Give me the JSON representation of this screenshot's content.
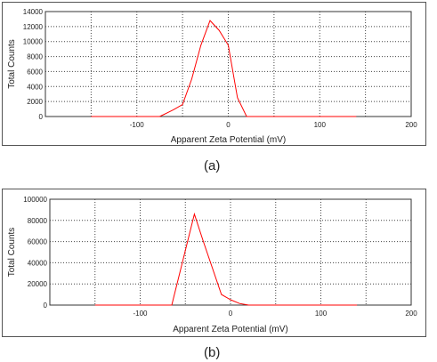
{
  "chart_data": [
    {
      "type": "line",
      "panel_label": "(a)",
      "xlabel": "Apparent Zeta Potential (mV)",
      "ylabel": "Total Counts",
      "xlim": [
        -200,
        200
      ],
      "ylim": [
        0,
        14000
      ],
      "xticks": [
        -100,
        0,
        100,
        200
      ],
      "yticks": [
        0,
        2000,
        4000,
        6000,
        8000,
        10000,
        12000,
        14000
      ],
      "grid": true,
      "line_color": "#ff0000",
      "series": [
        {
          "x": [
            -150,
            -75,
            -70,
            -60,
            -50,
            -40,
            -30,
            -20,
            -10,
            0,
            10,
            20,
            140
          ],
          "y": [
            0,
            0,
            300,
            900,
            1600,
            5000,
            9500,
            12800,
            11500,
            9500,
            2500,
            0,
            0
          ]
        }
      ]
    },
    {
      "type": "line",
      "panel_label": "(b)",
      "xlabel": "Apparent Zeta Potential (mV)",
      "ylabel": "Total Counts",
      "xlim": [
        -200,
        200
      ],
      "ylim": [
        0,
        100000
      ],
      "xticks": [
        -100,
        0,
        100,
        200
      ],
      "yticks": [
        0,
        20000,
        40000,
        60000,
        80000,
        100000
      ],
      "grid": true,
      "line_color": "#ff0000",
      "series": [
        {
          "x": [
            -150,
            -65,
            -40,
            -30,
            -10,
            0,
            10,
            20,
            140
          ],
          "y": [
            0,
            0,
            86000,
            60000,
            10000,
            5000,
            1500,
            0,
            0
          ]
        }
      ]
    }
  ]
}
